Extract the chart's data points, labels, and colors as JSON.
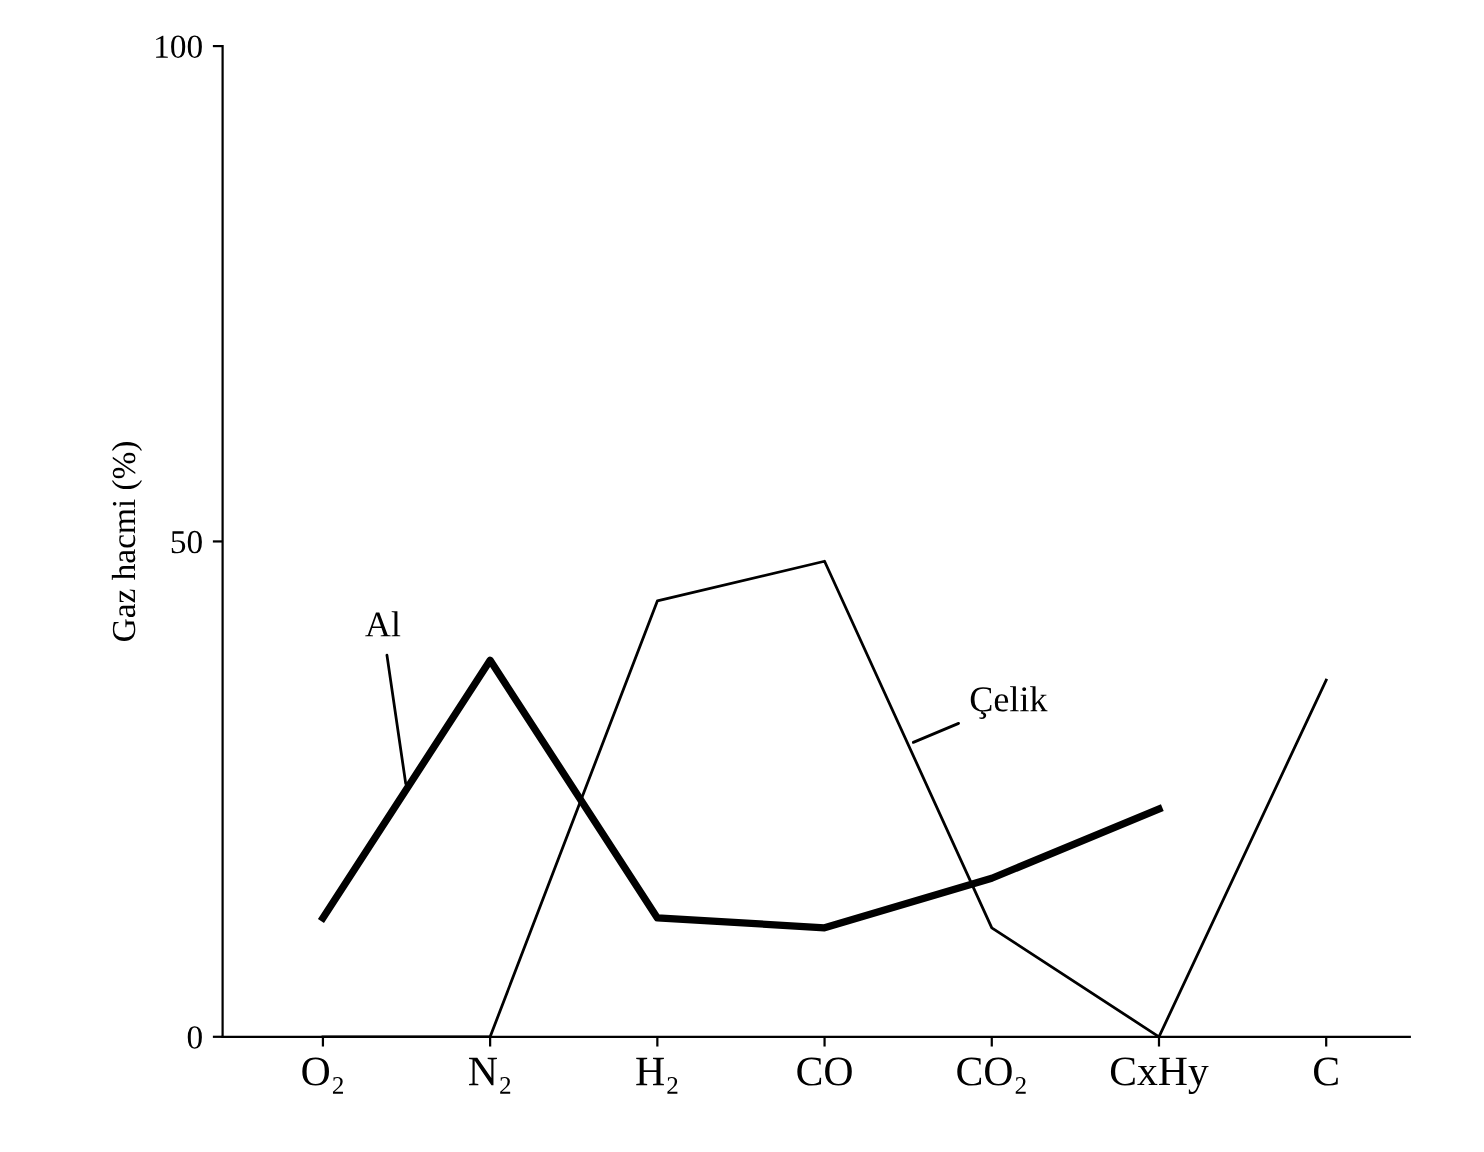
{
  "chart_data": {
    "type": "line",
    "ylabel": "Gaz hacmi (%)",
    "categories": [
      "O₂",
      "N₂",
      "H₂",
      "CO",
      "CO₂",
      "CxHy",
      "C"
    ],
    "series": [
      {
        "name": "Al",
        "color": "#000000",
        "values": [
          12,
          38,
          12,
          11,
          16,
          23,
          null
        ]
      },
      {
        "name": "Çelik",
        "color": "#000000",
        "values": [
          0,
          0,
          44,
          48,
          11,
          0,
          36
        ]
      }
    ],
    "ylim": [
      0,
      100
    ],
    "yticks": [
      0,
      50,
      100
    ],
    "grid": false,
    "legend": false,
    "marker": "none",
    "line_style": "solid"
  }
}
